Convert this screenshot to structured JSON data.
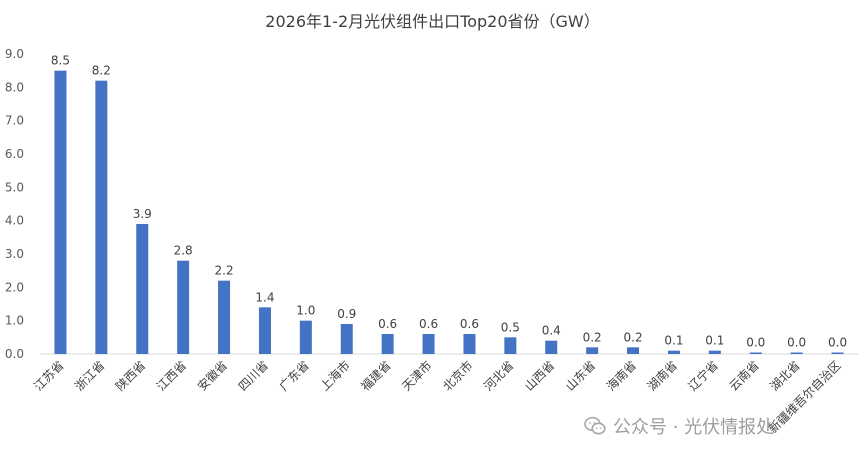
{
  "chart_data": {
    "type": "bar",
    "title": "2026年1-2月光伏组件出口Top20省份（GW）",
    "categories": [
      "江苏省",
      "浙江省",
      "陕西省",
      "江西省",
      "安徽省",
      "四川省",
      "广东省",
      "上海市",
      "福建省",
      "天津市",
      "北京市",
      "河北省",
      "山西省",
      "山东省",
      "海南省",
      "湖南省",
      "辽宁省",
      "云南省",
      "湖北省",
      "新疆维吾尔自治区"
    ],
    "values": [
      8.5,
      8.2,
      3.9,
      2.8,
      2.2,
      1.4,
      1.0,
      0.9,
      0.6,
      0.6,
      0.6,
      0.5,
      0.4,
      0.2,
      0.2,
      0.1,
      0.1,
      0.04,
      0.04,
      0.04
    ],
    "data_labels": [
      "8.5",
      "8.2",
      "3.9",
      "2.8",
      "2.2",
      "1.4",
      "1.0",
      "0.9",
      "0.6",
      "0.6",
      "0.6",
      "0.5",
      "0.4",
      "0.2",
      "0.2",
      "0.1",
      "0.1",
      "0.0",
      "0.0",
      "0.0"
    ],
    "yticks": [
      "0.0",
      "1.0",
      "2.0",
      "3.0",
      "4.0",
      "5.0",
      "6.0",
      "7.0",
      "8.0",
      "9.0"
    ],
    "ylim": [
      0,
      9
    ],
    "xlabel": "",
    "ylabel": "",
    "grid": false,
    "bar_color": "#4472C4"
  },
  "watermark": {
    "text": "公众号 · 光伏情报处",
    "icon": "wechat-icon"
  }
}
